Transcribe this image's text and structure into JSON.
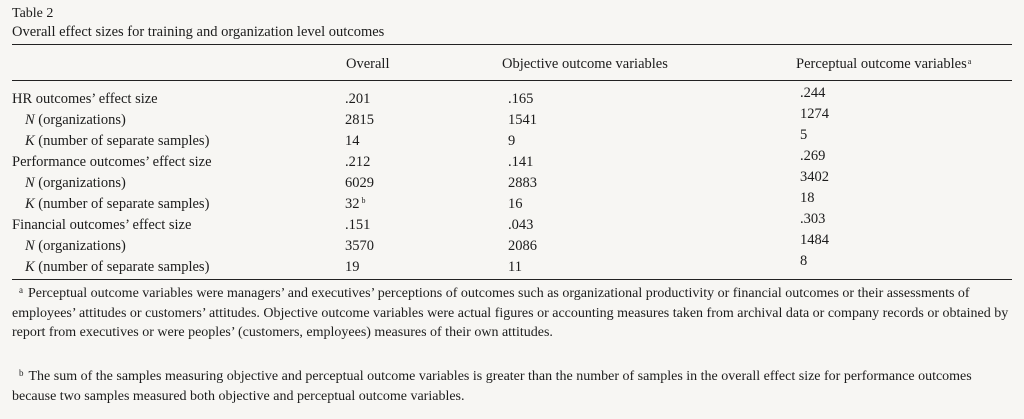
{
  "table": {
    "label": "Table 2",
    "caption": "Overall effect sizes for training and organization level outcomes",
    "columns": [
      "Overall",
      "Objective outcome variables",
      "Perceptual outcome variables"
    ],
    "perceptual_header_note": "a",
    "rows": [
      {
        "label": "HR outcomes’ effect size",
        "overall": ".201",
        "objective": ".165",
        "perceptual": ".244"
      },
      {
        "var": "N",
        "label_rest": " (organizations)",
        "overall": "2815",
        "objective": "1541",
        "perceptual": "1274"
      },
      {
        "var": "K",
        "label_rest": " (number of separate samples)",
        "overall": "14",
        "objective": "9",
        "perceptual": "5"
      },
      {
        "label": "Performance outcomes’ effect size",
        "overall": ".212",
        "objective": ".141",
        "perceptual": ".269"
      },
      {
        "var": "N",
        "label_rest": " (organizations)",
        "overall": "6029",
        "objective": "2883",
        "perceptual": "3402"
      },
      {
        "var": "K",
        "label_rest": " (number of separate samples)",
        "overall": "32",
        "overall_note": "b",
        "objective": "16",
        "perceptual": "18"
      },
      {
        "label": "Financial outcomes’ effect size",
        "overall": ".151",
        "objective": ".043",
        "perceptual": ".303"
      },
      {
        "var": "N",
        "label_rest": " (organizations)",
        "overall": "3570",
        "objective": "2086",
        "perceptual": "1484"
      },
      {
        "var": "K",
        "label_rest": " (number of separate samples)",
        "overall": "19",
        "objective": "11",
        "perceptual": "8"
      }
    ]
  },
  "footnotes": [
    {
      "mark": "a",
      "text": "Perceptual outcome variables were managers’ and executives’ perceptions of outcomes such as organizational productivity or financial outcomes or their assessments of employees’ attitudes or customers’ attitudes. Objective outcome variables were actual figures or accounting measures taken from archival data or company records or obtained by report from executives or were peoples’ (customers, employees) measures of their own attitudes."
    },
    {
      "mark": "b",
      "text": "The sum of the samples measuring objective and perceptual outcome variables is greater than the number of samples in the overall effect size for performance outcomes because two samples measured both objective and perceptual outcome variables."
    }
  ]
}
